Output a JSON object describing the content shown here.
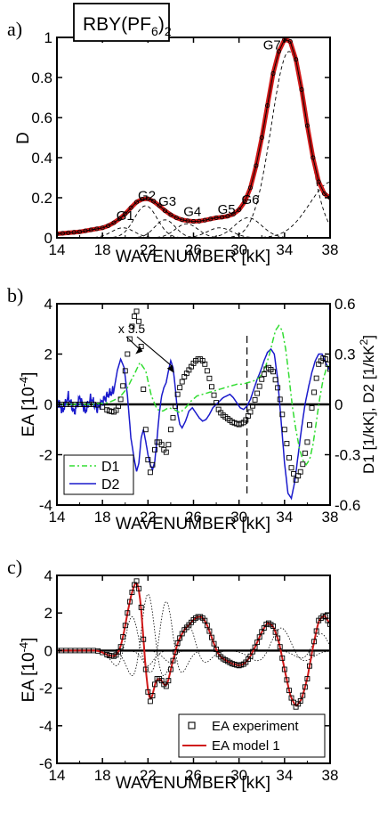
{
  "colors": {
    "model": "#d01818",
    "d1": "#33dd33",
    "d2": "#1a1acc",
    "axis": "#000000",
    "marker": "#000000",
    "fit": "#000000"
  },
  "chart_data": [
    {
      "panel": "a)",
      "type": "line",
      "inset_label": {
        "base": "RBY(PF",
        "sub1": "6",
        "close": ")",
        "sub2": "2"
      },
      "xlabel": "WAVENUMBER [kK]",
      "ylabel": "D",
      "xlim": [
        14,
        38
      ],
      "ylim": [
        0,
        1
      ],
      "xticks": [
        "14",
        "18",
        "22",
        "26",
        "30",
        "34",
        "38"
      ],
      "yticks": [
        "0",
        "0.2",
        "0.4",
        "0.6",
        "0.8",
        "1"
      ],
      "annotations": [
        {
          "text": "G1",
          "x": 20.0,
          "y": 0.09
        },
        {
          "text": "G2",
          "x": 21.9,
          "y": 0.19
        },
        {
          "text": "G3",
          "x": 23.7,
          "y": 0.16
        },
        {
          "text": "G4",
          "x": 25.9,
          "y": 0.11
        },
        {
          "text": "G5",
          "x": 28.9,
          "y": 0.12
        },
        {
          "text": "G6",
          "x": 31.0,
          "y": 0.17
        },
        {
          "text": "G7",
          "x": 32.9,
          "y": 0.94
        }
      ],
      "series": [
        {
          "role": "experiment",
          "x": [
            14,
            15,
            16,
            17,
            18,
            18.5,
            19,
            19.5,
            20,
            20.5,
            21,
            21.5,
            22,
            22.5,
            23,
            23.5,
            24,
            24.5,
            25,
            25.5,
            26,
            26.5,
            27,
            27.5,
            28,
            28.5,
            29,
            29.5,
            30,
            30.5,
            31,
            31.5,
            32,
            32.5,
            33,
            33.5,
            34,
            34.5,
            35,
            35.5,
            36,
            36.5,
            37,
            37.5,
            38
          ],
          "y": [
            0.02,
            0.025,
            0.03,
            0.04,
            0.05,
            0.06,
            0.075,
            0.095,
            0.12,
            0.15,
            0.178,
            0.193,
            0.195,
            0.182,
            0.16,
            0.135,
            0.115,
            0.1,
            0.09,
            0.085,
            0.082,
            0.083,
            0.088,
            0.094,
            0.1,
            0.103,
            0.108,
            0.118,
            0.14,
            0.18,
            0.25,
            0.36,
            0.5,
            0.66,
            0.82,
            0.93,
            0.99,
            0.98,
            0.89,
            0.74,
            0.56,
            0.4,
            0.28,
            0.22,
            0.2
          ]
        },
        {
          "role": "gaussian-components",
          "components": [
            {
              "name": "G1",
              "center": 19.8,
              "amp": 0.05,
              "sigma": 1.0
            },
            {
              "name": "G2",
              "center": 21.8,
              "amp": 0.16,
              "sigma": 1.0
            },
            {
              "name": "G3",
              "center": 23.5,
              "amp": 0.09,
              "sigma": 0.9
            },
            {
              "name": "G4",
              "center": 25.4,
              "amp": 0.07,
              "sigma": 1.0
            },
            {
              "name": "G5",
              "center": 28.3,
              "amp": 0.05,
              "sigma": 1.1
            },
            {
              "name": "G6",
              "center": 30.8,
              "amp": 0.1,
              "sigma": 1.2
            },
            {
              "name": "G7",
              "center": 34.4,
              "amp": 0.93,
              "sigma": 1.55
            },
            {
              "name": "tail",
              "center": 38.2,
              "amp": 0.28,
              "sigma": 2.0
            }
          ]
        }
      ]
    },
    {
      "panel": "b)",
      "type": "line",
      "xlabel": "WAVENUMBER [kK]",
      "ylabel": "EA [10",
      "ylabel_sup": "-4",
      "ylabel_close": "]",
      "y2label": "D1 [1/kK], D2 [1/kK",
      "y2label_sup": "2",
      "y2label_close": "]",
      "xlim": [
        14,
        38
      ],
      "ylim": [
        -4,
        4
      ],
      "y2lim": [
        -0.6,
        0.6
      ],
      "xticks": [
        "14",
        "18",
        "22",
        "26",
        "30",
        "34",
        "38"
      ],
      "yticks": [
        "-4",
        "-2",
        "0",
        "2",
        "4"
      ],
      "y2ticks": [
        "-0.6",
        "-0.3",
        "0",
        "0.3",
        "0.6"
      ],
      "annotation": "x 3.5",
      "dashed_vline_x": 30.7,
      "legend": {
        "position": "bottom-left",
        "entries": [
          "D1",
          "D2"
        ]
      },
      "series": [
        {
          "role": "EA experiment",
          "axis": "left",
          "x": [
            14,
            14.5,
            15,
            15.5,
            16,
            16.5,
            17,
            17.5,
            18,
            18.5,
            19,
            19.3,
            19.6,
            19.9,
            20.2,
            20.5,
            20.8,
            21,
            21.2,
            21.4,
            21.6,
            21.8,
            22,
            22.2,
            22.4,
            22.6,
            22.8,
            23,
            23.2,
            23.4,
            23.6,
            23.8,
            24,
            24.3,
            24.6,
            24.9,
            25.2,
            25.5,
            25.8,
            26.1,
            26.4,
            26.7,
            27,
            27.3,
            27.6,
            27.9,
            28.2,
            28.5,
            28.8,
            29.1,
            29.4,
            29.7,
            30,
            30.5,
            31,
            31.5,
            32,
            32.5,
            33,
            33.5,
            34,
            34.5,
            35,
            35.5,
            36,
            36.5,
            37,
            37.5,
            38
          ],
          "y": [
            0,
            0,
            0,
            0,
            0,
            0,
            0,
            0,
            -0.1,
            -0.25,
            -0.3,
            -0.2,
            0.2,
            1.0,
            2.0,
            2.9,
            3.5,
            3.7,
            3.3,
            2.3,
            0.6,
            -1.0,
            -2.2,
            -2.7,
            -2.4,
            -1.8,
            -1.5,
            -1.5,
            -1.6,
            -1.8,
            -1.9,
            -1.6,
            -1.0,
            -0.3,
            0.4,
            0.8,
            1.1,
            1.3,
            1.5,
            1.7,
            1.8,
            1.8,
            1.6,
            1.2,
            0.7,
            0.2,
            -0.2,
            -0.4,
            -0.5,
            -0.6,
            -0.7,
            -0.75,
            -0.8,
            -0.7,
            -0.3,
            0.3,
            1.0,
            1.5,
            1.3,
            0.5,
            -1.0,
            -2.4,
            -3.0,
            -2.6,
            -1.5,
            0.2,
            1.6,
            1.9,
            1.4
          ]
        },
        {
          "role": "D1",
          "axis": "right",
          "x": [
            14,
            17,
            18.5,
            19.5,
            20.2,
            20.8,
            21.3,
            21.8,
            22.3,
            22.8,
            23.3,
            23.8,
            24.3,
            24.8,
            25.3,
            25.8,
            26.3,
            26.8,
            27.3,
            27.8,
            28.3,
            28.8,
            29.3,
            29.8,
            30.3,
            30.8,
            31.3,
            31.8,
            32.3,
            32.6,
            32.9,
            33.2,
            33.5,
            33.8,
            34.1,
            34.4,
            34.7,
            35,
            35.3,
            35.6,
            35.9,
            36.2,
            36.5,
            36.8,
            37.1,
            37.4,
            37.7,
            38
          ],
          "y": [
            0,
            0,
            0.01,
            0.04,
            0.1,
            0.18,
            0.25,
            0.2,
            0.05,
            -0.03,
            -0.04,
            -0.02,
            -0.03,
            -0.05,
            -0.02,
            0.02,
            0.05,
            0.06,
            0.07,
            0.08,
            0.09,
            0.1,
            0.11,
            0.12,
            0.12,
            0.13,
            0.14,
            0.16,
            0.22,
            0.28,
            0.36,
            0.44,
            0.47,
            0.44,
            0.33,
            0.16,
            -0.02,
            -0.15,
            -0.26,
            -0.33,
            -0.36,
            -0.33,
            -0.24,
            -0.1,
            0.04,
            0.15,
            0.22,
            0.25
          ]
        },
        {
          "role": "D2",
          "axis": "right",
          "x": [
            14,
            14.5,
            15,
            15.5,
            16,
            16.5,
            17,
            17.5,
            18,
            18.5,
            19,
            19.3,
            19.6,
            19.9,
            20.2,
            20.5,
            20.8,
            21,
            21.2,
            21.4,
            21.6,
            21.8,
            22,
            22.2,
            22.4,
            22.6,
            22.8,
            23,
            23.2,
            23.4,
            23.6,
            23.8,
            24,
            24.2,
            24.4,
            24.6,
            24.8,
            25,
            25.3,
            25.6,
            25.9,
            26.2,
            26.5,
            26.8,
            27.1,
            27.4,
            27.7,
            28,
            28.3,
            28.6,
            28.9,
            29.2,
            29.5,
            29.8,
            30.1,
            30.4,
            30.7,
            31,
            31.3,
            31.6,
            31.9,
            32.2,
            32.5,
            32.8,
            33.1,
            33.4,
            33.7,
            34,
            34.3,
            34.6,
            34.9,
            35.2,
            35.5,
            35.8,
            36.1,
            36.4,
            36.7,
            37,
            37.3,
            37.6,
            38
          ],
          "y": [
            0.03,
            -0.04,
            0.05,
            -0.05,
            0.04,
            -0.04,
            0.04,
            -0.03,
            0.02,
            0.06,
            0.08,
            0.2,
            0.27,
            0.22,
            0.05,
            -0.2,
            -0.33,
            -0.4,
            -0.35,
            -0.2,
            -0.15,
            -0.22,
            -0.3,
            -0.36,
            -0.39,
            -0.34,
            -0.2,
            -0.05,
            0.05,
            0.1,
            0.13,
            0.2,
            0.26,
            0.22,
            0.1,
            -0.05,
            -0.12,
            -0.14,
            -0.1,
            -0.04,
            -0.02,
            -0.05,
            -0.08,
            -0.1,
            -0.09,
            -0.06,
            -0.02,
            0.0,
            0.02,
            0.04,
            0.05,
            0.06,
            0.04,
            0.01,
            -0.02,
            -0.03,
            -0.01,
            0.03,
            0.09,
            0.15,
            0.2,
            0.26,
            0.31,
            0.33,
            0.3,
            0.15,
            -0.1,
            -0.35,
            -0.53,
            -0.56,
            -0.46,
            -0.3,
            -0.14,
            0.0,
            0.1,
            0.19,
            0.26,
            0.3,
            0.3,
            0.25,
            0.2
          ]
        }
      ]
    },
    {
      "panel": "c)",
      "type": "line",
      "xlabel": "WAVENUMBER [kK]",
      "ylabel": "EA [10",
      "ylabel_sup": "-4",
      "ylabel_close": "]",
      "xlim": [
        14,
        38
      ],
      "ylim": [
        -6,
        4
      ],
      "xticks": [
        "14",
        "18",
        "22",
        "26",
        "30",
        "34",
        "38"
      ],
      "yticks": [
        "-6",
        "-4",
        "-2",
        "0",
        "2",
        "4"
      ],
      "legend": {
        "position": "bottom-right",
        "entries": [
          "EA experiment",
          "EA model 1"
        ]
      },
      "series": [
        {
          "role": "EA experiment (markers)",
          "source": "panel b experiment"
        },
        {
          "role": "EA model 1",
          "source": "smooth fit of experiment"
        },
        {
          "role": "components (dotted)",
          "components": [
            {
              "center": 20.6,
              "amp": 1.8,
              "sigma": 0.8
            },
            {
              "center": 22.0,
              "amp": 3.0,
              "sigma": 0.8
            },
            {
              "center": 23.6,
              "amp": 2.6,
              "sigma": 0.8
            },
            {
              "center": 25.5,
              "amp": 1.4,
              "sigma": 0.9
            },
            {
              "center": 33.7,
              "amp": 1.2,
              "sigma": 1.2
            },
            {
              "center": 37.2,
              "amp": 0.9,
              "sigma": 1.0
            }
          ]
        }
      ]
    }
  ]
}
